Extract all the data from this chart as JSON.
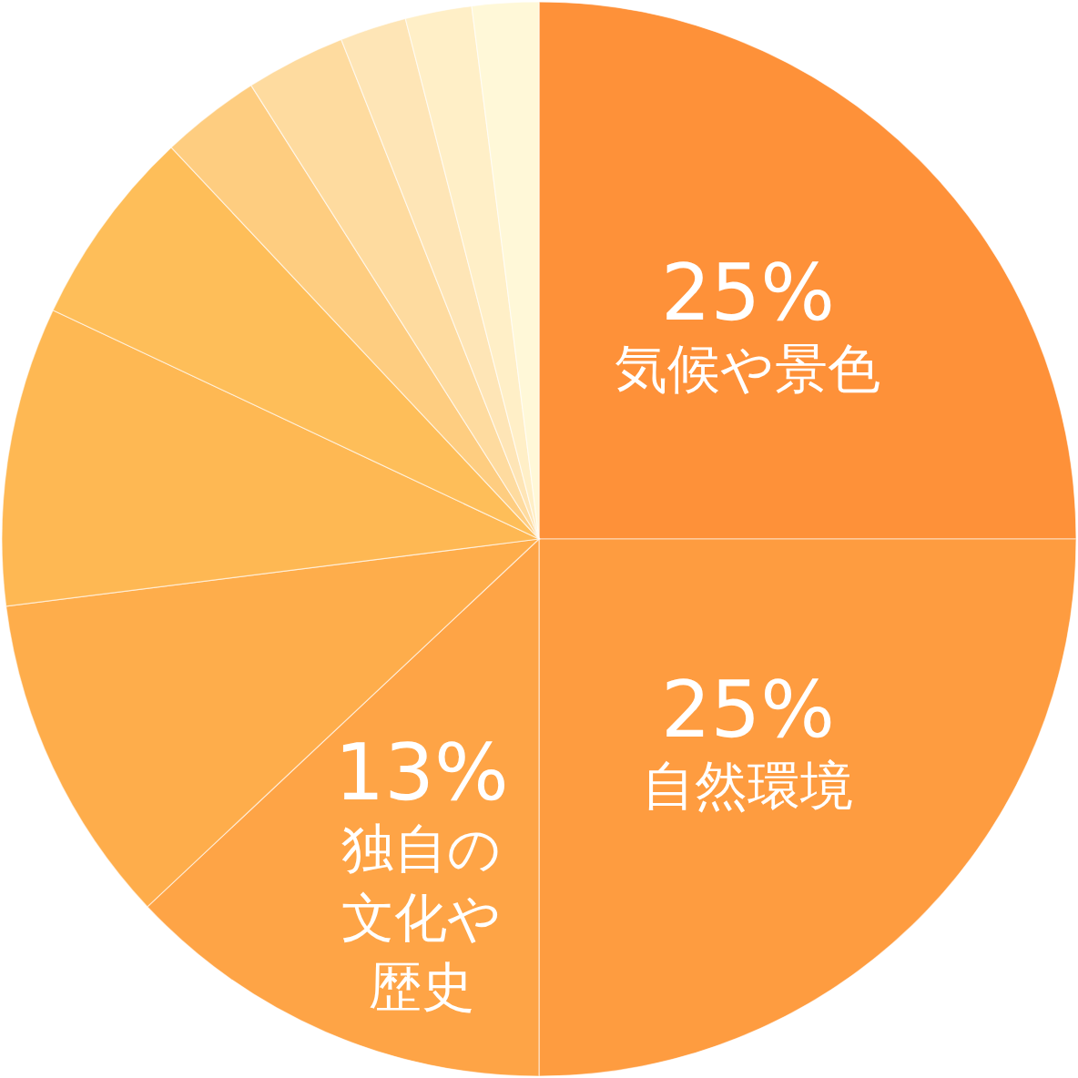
{
  "chart_data": {
    "type": "pie",
    "categories": [
      "気候や景色",
      "自然環境",
      "独自の文化や歴史",
      null,
      null,
      null,
      null,
      null,
      null,
      null,
      null
    ],
    "values": [
      25,
      25,
      13,
      10,
      9,
      6,
      3,
      3,
      2,
      2,
      2
    ],
    "value_labels": [
      "25%",
      "25%",
      "13%",
      null,
      null,
      null,
      null,
      null,
      null,
      null,
      null
    ],
    "colors": [
      "#fe9139",
      "#fe9c40",
      "#fea446",
      "#fead4b",
      "#feb853",
      "#febe59",
      "#fecd80",
      "#fedb9f",
      "#fee5b6",
      "#ffefc7",
      "#fff8d8"
    ]
  }
}
